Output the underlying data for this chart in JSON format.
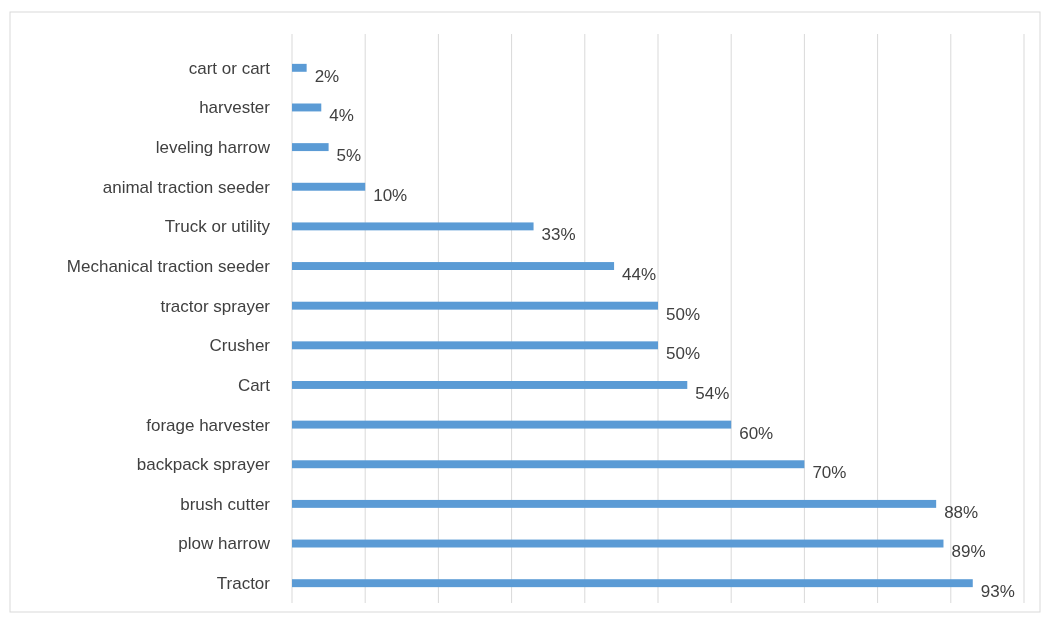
{
  "chart_data": {
    "type": "bar",
    "orientation": "horizontal",
    "categories": [
      "cart or cart",
      "harvester",
      "leveling harrow",
      "animal traction seeder",
      "Truck or utility",
      "Mechanical traction seeder",
      "tractor sprayer",
      "Crusher",
      "Cart",
      "forage harvester",
      "backpack sprayer",
      "brush cutter",
      "plow harrow",
      "Tractor"
    ],
    "values": [
      2,
      4,
      5,
      10,
      33,
      44,
      50,
      50,
      54,
      60,
      70,
      88,
      89,
      93
    ],
    "value_labels": [
      "2%",
      "4%",
      "5%",
      "10%",
      "33%",
      "44%",
      "50%",
      "50%",
      "54%",
      "60%",
      "70%",
      "88%",
      "89%",
      "93%"
    ],
    "color": "#5b9bd5",
    "xlim": [
      0,
      100
    ],
    "xticks": [
      {
        "value": 0,
        "label": null
      },
      {
        "value": 10,
        "label": null
      },
      {
        "value": 20,
        "label": null
      },
      {
        "value": 30,
        "label": null
      },
      {
        "value": 40,
        "label": null
      },
      {
        "value": 50,
        "label": null
      },
      {
        "value": 60,
        "label": null
      },
      {
        "value": 70,
        "label": null
      },
      {
        "value": 80,
        "label": null
      },
      {
        "value": 90,
        "label": null
      },
      {
        "value": 100,
        "label": null
      }
    ],
    "tick_labels": "y",
    "grid": "x"
  }
}
